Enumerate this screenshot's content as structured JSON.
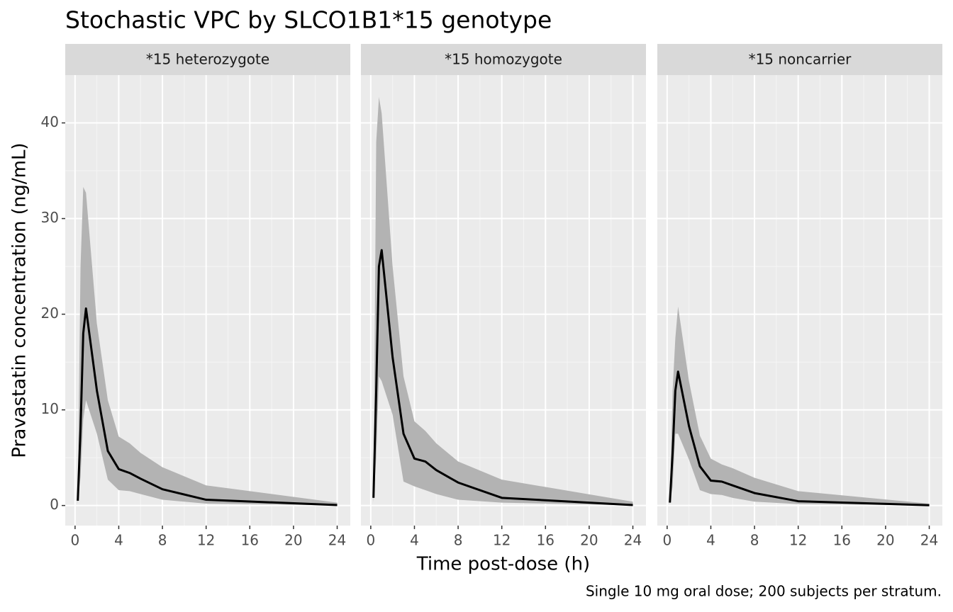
{
  "chart_data": {
    "type": "line",
    "title": "Stochastic VPC by SLCO1B1*15 genotype",
    "x_label": "Time post-dose (h)",
    "y_label": "Pravastatin concentration (ng/mL)",
    "caption": "Single 10 mg oral dose; 200 subjects per stratum.",
    "x": [
      0.25,
      0.5,
      0.75,
      1,
      2,
      3,
      4,
      5,
      6,
      8,
      12,
      24
    ],
    "xlim": [
      -0.9,
      25.2
    ],
    "xticks": [
      0,
      4,
      8,
      12,
      16,
      20,
      24
    ],
    "ylim": [
      -2.1,
      45
    ],
    "yticks": [
      0,
      10,
      20,
      30,
      40
    ],
    "grid": true,
    "line_color": "#000000",
    "band_color": "#b3b3b3",
    "panels": [
      {
        "title": "*15 heterozygote",
        "values": [
          0.5,
          8,
          18,
          20.6,
          12,
          5.7,
          3.8,
          3.4,
          2.8,
          1.7,
          0.6,
          0.05
        ],
        "upper": [
          1,
          25,
          33.3,
          32.7,
          19,
          11,
          7.2,
          6.5,
          5.5,
          4,
          2.1,
          0.3
        ],
        "lower": [
          0.2,
          3,
          9,
          11,
          7.5,
          2.7,
          1.6,
          1.5,
          1.2,
          0.6,
          0.2,
          0.01
        ]
      },
      {
        "title": "*15 homozygote",
        "values": [
          0.8,
          12,
          25,
          26.7,
          15.5,
          7.5,
          4.9,
          4.6,
          3.7,
          2.4,
          0.8,
          0.05
        ],
        "upper": [
          1.5,
          38,
          42.7,
          41,
          25,
          13.5,
          8.8,
          7.8,
          6.5,
          4.6,
          2.7,
          0.4
        ],
        "lower": [
          0.3,
          5,
          13.5,
          13,
          9.5,
          2.5,
          2,
          1.6,
          1.2,
          0.6,
          0.3,
          0.01
        ]
      },
      {
        "title": "*15 noncarrier",
        "values": [
          0.3,
          5.5,
          12,
          14,
          8.3,
          4.1,
          2.6,
          2.5,
          2.1,
          1.3,
          0.45,
          0.03
        ],
        "upper": [
          0.6,
          12,
          17.5,
          20.8,
          13,
          7.3,
          4.9,
          4.3,
          3.9,
          2.9,
          1.5,
          0.2
        ],
        "lower": [
          0.1,
          2,
          7.5,
          7.5,
          4.8,
          1.6,
          1.2,
          1.1,
          0.8,
          0.4,
          0.15,
          0.005
        ]
      }
    ]
  }
}
